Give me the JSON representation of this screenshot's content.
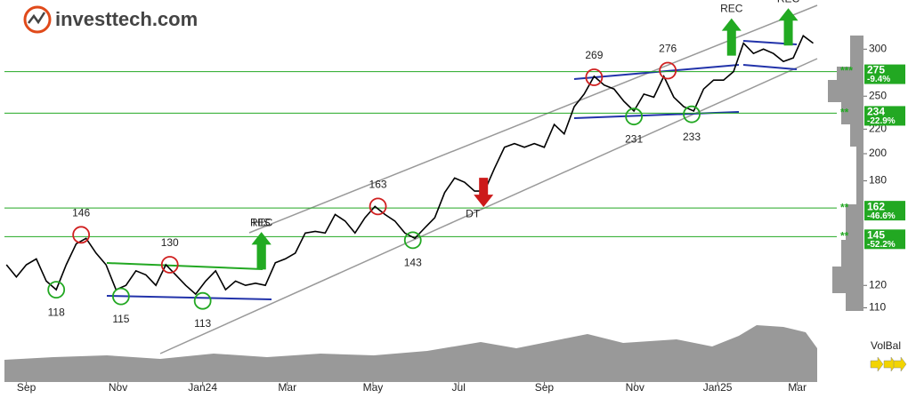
{
  "logo": "investtech.com",
  "chart_data": {
    "type": "line",
    "log_scale": true,
    "x": [
      -2,
      -1,
      0,
      1,
      2,
      3,
      4,
      5,
      6,
      7,
      8,
      9,
      10,
      11,
      12,
      13,
      14,
      15,
      16,
      17,
      18,
      19,
      20,
      21,
      22,
      23,
      24,
      25,
      26,
      27,
      28,
      29,
      30,
      31,
      32,
      33,
      34,
      35,
      36,
      37,
      38,
      39,
      40,
      41,
      42,
      43,
      44,
      45,
      46,
      47,
      48,
      49,
      50,
      51,
      52,
      53,
      54,
      55,
      56,
      57,
      58,
      59,
      60,
      61,
      62,
      63,
      64,
      65,
      66,
      67,
      68,
      69,
      70,
      71,
      72,
      73,
      74,
      75,
      76,
      77,
      78,
      79
    ],
    "values": [
      130,
      124,
      130,
      133,
      122,
      118,
      130,
      141,
      144,
      136,
      130,
      118,
      120,
      127,
      125,
      120,
      130,
      125,
      120,
      116,
      122,
      127,
      118,
      122,
      120,
      121,
      120,
      131,
      133,
      136,
      147,
      148,
      147,
      158,
      154,
      147,
      156,
      163,
      158,
      154,
      147,
      144,
      150,
      156,
      172,
      182,
      179,
      173,
      173,
      189,
      205,
      208,
      205,
      208,
      205,
      224,
      216,
      240,
      252,
      270,
      261,
      257,
      245,
      236,
      252,
      249,
      270,
      249,
      240,
      236,
      257,
      266,
      266,
      275,
      307,
      295,
      300,
      295,
      286,
      290,
      316,
      307
    ],
    "color": "#000000",
    "xlim": [
      -2.2,
      79.4
    ],
    "xticks": [
      {
        "value": 0,
        "label": "Sep"
      },
      {
        "value": 9.2,
        "label": "Nov"
      },
      {
        "value": 17.7,
        "label": "Jan24"
      },
      {
        "value": 26.2,
        "label": "Mar"
      },
      {
        "value": 34.8,
        "label": "May"
      },
      {
        "value": 43.4,
        "label": "Jul"
      },
      {
        "value": 52,
        "label": "Sep"
      },
      {
        "value": 61.1,
        "label": "Nov"
      },
      {
        "value": 69.4,
        "label": "Jan25"
      },
      {
        "value": 77.4,
        "label": "Mar"
      }
    ],
    "ylim": [
      105,
      363
    ],
    "yticks": [
      110,
      120,
      180,
      200,
      220,
      250,
      300
    ],
    "levels": [
      {
        "value": 275,
        "change": "-9.4%",
        "rating": "***"
      },
      {
        "value": 234,
        "change": "-22.9%",
        "rating": "**"
      },
      {
        "value": 162,
        "change": "-46.6%",
        "rating": "**"
      },
      {
        "value": 145,
        "change": "-52.2%",
        "rating": "**"
      }
    ],
    "level_color": "#22a822",
    "annotations": [
      {
        "x": 3,
        "value": 118,
        "kind": "trough"
      },
      {
        "x": 5.5,
        "value": 146,
        "kind": "peak"
      },
      {
        "x": 9.5,
        "value": 115,
        "kind": "trough"
      },
      {
        "x": 14.4,
        "value": 130,
        "kind": "peak"
      },
      {
        "x": 17.7,
        "value": 113,
        "kind": "trough"
      },
      {
        "x": 35.3,
        "value": 163,
        "kind": "peak"
      },
      {
        "x": 38.8,
        "value": 143,
        "kind": "trough"
      },
      {
        "x": 57,
        "value": 269,
        "kind": "peak"
      },
      {
        "x": 61,
        "value": 231,
        "kind": "trough"
      },
      {
        "x": 64.4,
        "value": 276,
        "kind": "peak"
      },
      {
        "x": 66.8,
        "value": 233,
        "kind": "trough"
      }
    ],
    "signals": [
      {
        "x": 23.6,
        "label": "HIS",
        "direction": "up"
      },
      {
        "x": 23.6,
        "label": "REC",
        "direction": "up"
      },
      {
        "x": 45.9,
        "label": "DT",
        "direction": "down"
      },
      {
        "x": 70.8,
        "label": "REC",
        "direction": "up"
      },
      {
        "x": 76.5,
        "label": "REC",
        "direction": "up"
      }
    ],
    "indicator": "VolBal"
  }
}
